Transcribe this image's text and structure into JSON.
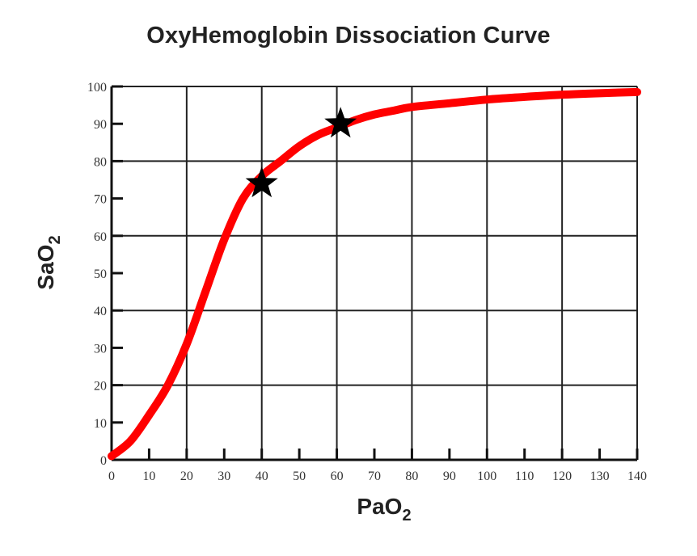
{
  "chart_data": {
    "type": "line",
    "title": "OxyHemoglobin Dissociation Curve",
    "xlabel": {
      "text": "PaO",
      "subscript": "2"
    },
    "ylabel": {
      "text": "SaO",
      "subscript": "2"
    },
    "xlim": [
      0,
      140
    ],
    "ylim": [
      0,
      100
    ],
    "x_ticks": [
      0,
      10,
      20,
      30,
      40,
      50,
      60,
      70,
      80,
      90,
      100,
      110,
      120,
      130,
      140
    ],
    "y_ticks": [
      0,
      10,
      20,
      30,
      40,
      50,
      60,
      70,
      80,
      90,
      100
    ],
    "grid": "on",
    "x_gridlines": [
      0,
      20,
      40,
      60,
      80,
      100,
      120,
      140
    ],
    "y_gridlines": [
      0,
      20,
      40,
      60,
      80,
      100
    ],
    "series": [
      {
        "color": "#ff0000",
        "x": [
          0,
          5,
          10,
          15,
          20,
          25,
          30,
          35,
          40,
          45,
          50,
          55,
          60,
          65,
          70,
          75,
          80,
          90,
          100,
          110,
          120,
          130,
          140
        ],
        "y": [
          1,
          5,
          12,
          20,
          31,
          45,
          59,
          70,
          76,
          80,
          84,
          87,
          89,
          91,
          92.5,
          93.5,
          94.5,
          95.5,
          96.5,
          97.2,
          97.8,
          98.2,
          98.5
        ]
      }
    ],
    "markers": [
      {
        "shape": "star",
        "color": "#000000",
        "x": 40,
        "y": 74
      },
      {
        "shape": "star",
        "color": "#000000",
        "x": 61,
        "y": 90
      }
    ]
  }
}
